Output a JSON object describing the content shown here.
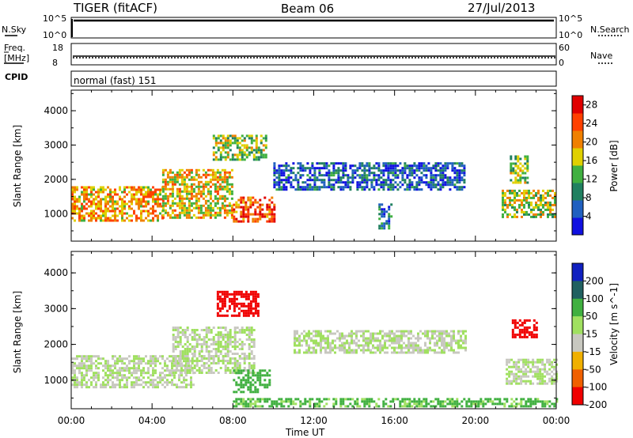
{
  "header": {
    "radar": "TIGER (fitACF)",
    "beam": "Beam 06",
    "date": "27/Jul/2013"
  },
  "nsky_panel": {
    "left_label": "N.Sky",
    "right_label": "N.Search",
    "ticks_left": [
      "10^5",
      "10^0"
    ],
    "ticks_right": [
      "10^5",
      "10^0"
    ]
  },
  "freq_panel": {
    "left_label_1": "Freq.",
    "left_label_2": "[MHz]",
    "right_label": "Nave",
    "ticks_left": [
      "18",
      "8"
    ],
    "ticks_right": [
      "60",
      "0"
    ]
  },
  "cpid": {
    "label": "CPID",
    "value": "normal (fast) 151"
  },
  "chart_data": [
    {
      "type": "heatmap",
      "panel": "power",
      "ylabel": "Slant Range [km]",
      "yticks": [
        "1000",
        "2000",
        "3000",
        "4000"
      ],
      "ylim": [
        200,
        4600
      ],
      "colorbar_label": "Power [dB]",
      "colorbar_ticks": [
        "4",
        "8",
        "12",
        "16",
        "20",
        "24",
        "28"
      ],
      "colorbar_range": [
        0,
        30
      ],
      "colors": [
        "#1010e0",
        "#2060c0",
        "#208060",
        "#40b040",
        "#e0d000",
        "#f08000",
        "#ff4000",
        "#e00000"
      ],
      "regions": [
        {
          "t": [
            0,
            4.5
          ],
          "range": [
            800,
            1800
          ],
          "value": 20
        },
        {
          "t": [
            4.5,
            8
          ],
          "range": [
            900,
            2300
          ],
          "value": 18
        },
        {
          "t": [
            7,
            9.7
          ],
          "range": [
            2600,
            3300
          ],
          "value": 14
        },
        {
          "t": [
            8,
            10
          ],
          "range": [
            800,
            1500
          ],
          "value": 24
        },
        {
          "t": [
            10,
            19.5
          ],
          "range": [
            1700,
            2500
          ],
          "value": 6
        },
        {
          "t": [
            15.2,
            15.8
          ],
          "range": [
            600,
            1300
          ],
          "value": 8
        },
        {
          "t": [
            21.3,
            24
          ],
          "range": [
            900,
            1700
          ],
          "value": 16
        },
        {
          "t": [
            21.7,
            22.6
          ],
          "range": [
            1900,
            2700
          ],
          "value": 14
        }
      ]
    },
    {
      "type": "heatmap",
      "panel": "velocity",
      "ylabel": "Slant Range [km]",
      "yticks": [
        "1000",
        "2000",
        "3000",
        "4000"
      ],
      "ylim": [
        200,
        4600
      ],
      "colorbar_label": "Velocity [m s^-1]",
      "colorbar_ticks": [
        "200",
        "100",
        "50",
        "15",
        "-15",
        "-50",
        "-100",
        "-200"
      ],
      "colors": [
        "#1020c0",
        "#206060",
        "#40b040",
        "#a0e060",
        "#c8c8c0",
        "#f0b000",
        "#f06000",
        "#f00000"
      ],
      "regions": [
        {
          "t": [
            0,
            6
          ],
          "range": [
            800,
            1700
          ],
          "value": 0
        },
        {
          "t": [
            5,
            9
          ],
          "range": [
            1200,
            2500
          ],
          "value": 0
        },
        {
          "t": [
            7.2,
            9.3
          ],
          "range": [
            2800,
            3500
          ],
          "value": -200
        },
        {
          "t": [
            8,
            9.8
          ],
          "range": [
            700,
            1300
          ],
          "value": 60
        },
        {
          "t": [
            11,
            19.5
          ],
          "range": [
            1800,
            2400
          ],
          "value": 0
        },
        {
          "t": [
            21.8,
            23
          ],
          "range": [
            2200,
            2700
          ],
          "value": -200
        },
        {
          "t": [
            21.5,
            24
          ],
          "range": [
            900,
            1600
          ],
          "value": 0
        },
        {
          "t": [
            8,
            24
          ],
          "range": [
            250,
            500
          ],
          "value": 40
        }
      ]
    }
  ],
  "x_axis": {
    "label": "Time UT",
    "ticks": [
      "00:00",
      "04:00",
      "08:00",
      "12:00",
      "16:00",
      "20:00",
      "00:00"
    ],
    "range_hours": [
      0,
      24
    ]
  }
}
